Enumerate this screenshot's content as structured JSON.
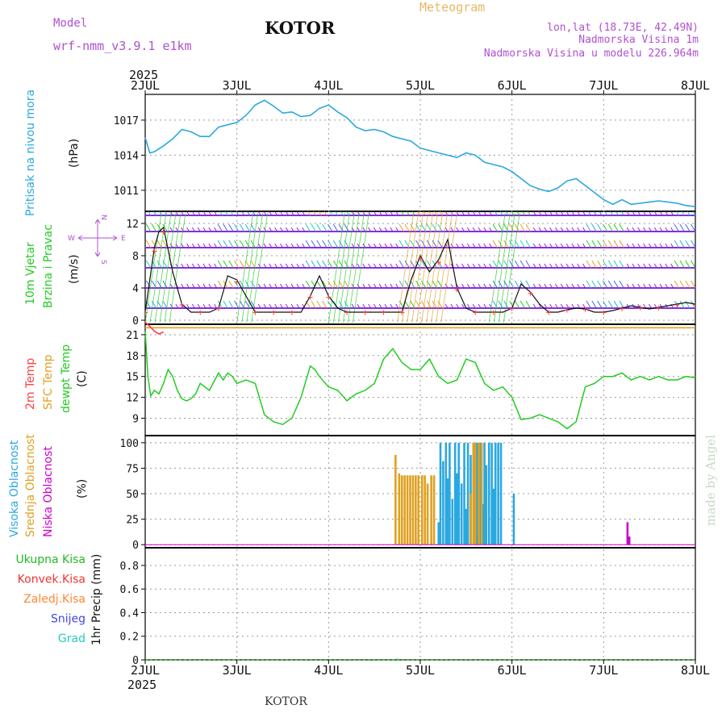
{
  "header": {
    "model_label": "Model",
    "model_name": "wrf-nmm_v3.9.1  e1km",
    "station_title": "KOTOR",
    "meteogram_label": "Meteogram",
    "lonlat": "lon,lat (18.73E, 42.49N)",
    "elevation": "Nadmorska Visina 1m",
    "model_elevation": "Nadmorska Visina u modelu 226.964m",
    "year": "2025"
  },
  "footer": {
    "year": "2025",
    "station": "KOTOR",
    "credit": "made by Angel"
  },
  "colors": {
    "pressure": "#2aa8e0",
    "temp2m": "#ff4040",
    "sfc": "#e0a020",
    "dewpt": "#22cc22",
    "high_cloud": "#2aa8e0",
    "mid_cloud": "#e0a020",
    "low_cloud": "#cc00cc",
    "wind_levels": "#8a2be2"
  },
  "x_ticks": [
    "2JUL",
    "3JUL",
    "4JUL",
    "5JUL",
    "6JUL",
    "7JUL",
    "8JUL"
  ],
  "panels": {
    "pressure": {
      "ylabel_name": "Pritisak na nivou mora",
      "unit": "(hPa)",
      "ticks": [
        "1011",
        "1014",
        "1017"
      ]
    },
    "wind": {
      "ylabel_a": "10m Vjetar",
      "ylabel_b": "Brzina i Pravac",
      "unit": "(m/s)",
      "ticks": [
        "0",
        "4",
        "8",
        "12"
      ],
      "compass_n": "N",
      "compass_w": "W",
      "compass_e": "E",
      "compass_s": "S"
    },
    "temp": {
      "label_2m": "2m Temp",
      "label_sfc": "SFC Temp",
      "label_dewpt": "dewpt Temp",
      "unit": "(C)",
      "ticks": [
        "9",
        "12",
        "15",
        "18",
        "21"
      ]
    },
    "cloud": {
      "label_high": "Visoka Oblacnost",
      "label_mid": "Srednja Oblacnost",
      "label_low": "Niska Oblacnost",
      "unit": "(%)",
      "ticks": [
        "0",
        "25",
        "50",
        "75",
        "100"
      ]
    },
    "precip": {
      "legend": [
        {
          "label": "Ukupna Kisa",
          "color": "#22bb22"
        },
        {
          "label": "Konvek.Kisa",
          "color": "#ee3333"
        },
        {
          "label": "Zaledj.Kisa",
          "color": "#ff8833"
        },
        {
          "label": "Snijeg",
          "color": "#4444ee"
        },
        {
          "label": "Grad",
          "color": "#22ccbb"
        }
      ],
      "ylabel": "1hr Precip (mm)",
      "ticks": [
        "0",
        "0.2",
        "0.4",
        "0.6",
        "0.8"
      ]
    }
  },
  "chart_data": [
    {
      "type": "line",
      "name": "Pritisak na nivou mora",
      "x_unit": "days since 2 JUL 2025 00UTC",
      "ylim": [
        1009.2,
        1019.2
      ],
      "series": [
        {
          "name": "Pritisak",
          "x": [
            0,
            0.05,
            0.1,
            0.2,
            0.3,
            0.4,
            0.5,
            0.6,
            0.7,
            0.8,
            0.9,
            1.0,
            1.1,
            1.2,
            1.3,
            1.4,
            1.5,
            1.6,
            1.7,
            1.8,
            1.9,
            2.0,
            2.1,
            2.2,
            2.3,
            2.4,
            2.5,
            2.6,
            2.7,
            2.8,
            2.9,
            3.0,
            3.1,
            3.2,
            3.3,
            3.4,
            3.5,
            3.6,
            3.7,
            3.8,
            3.9,
            4.0,
            4.1,
            4.2,
            4.3,
            4.4,
            4.5,
            4.6,
            4.7,
            4.8,
            4.9,
            5.0,
            5.1,
            5.2,
            5.3,
            5.4,
            5.5,
            5.6,
            5.7,
            5.8,
            5.9,
            6.0
          ],
          "values": [
            1015.5,
            1014.2,
            1014.3,
            1014.8,
            1015.4,
            1016.2,
            1016.0,
            1015.6,
            1015.6,
            1016.4,
            1016.6,
            1016.8,
            1017.4,
            1018.3,
            1018.7,
            1018.2,
            1017.6,
            1017.7,
            1017.3,
            1017.4,
            1018.0,
            1018.3,
            1017.7,
            1017.2,
            1016.4,
            1016.1,
            1016.2,
            1016.0,
            1015.6,
            1015.4,
            1015.2,
            1014.6,
            1014.4,
            1014.2,
            1014.0,
            1013.8,
            1014.2,
            1014.0,
            1013.4,
            1013.2,
            1013.0,
            1012.6,
            1012.0,
            1011.4,
            1011.1,
            1010.9,
            1011.2,
            1011.8,
            1012.0,
            1011.4,
            1010.8,
            1010.2,
            1009.8,
            1010.2,
            1009.8,
            1009.9,
            1010.0,
            1010.1,
            1010.0,
            1009.9,
            1009.7,
            1009.6
          ]
        }
      ]
    },
    {
      "type": "line",
      "name": "10m Vjetar Brzina i Pravac",
      "x_unit": "days since 2 JUL 2025 00UTC",
      "ylim": [
        -0.5,
        13.5
      ],
      "series": [
        {
          "name": "Brzina",
          "x": [
            0,
            0.05,
            0.1,
            0.15,
            0.2,
            0.3,
            0.4,
            0.5,
            0.6,
            0.7,
            0.8,
            0.9,
            1.0,
            1.1,
            1.2,
            1.3,
            1.4,
            1.5,
            1.6,
            1.7,
            1.8,
            1.9,
            2.0,
            2.1,
            2.2,
            2.3,
            2.4,
            2.5,
            2.6,
            2.7,
            2.8,
            2.9,
            3.0,
            3.1,
            3.2,
            3.3,
            3.4,
            3.5,
            3.6,
            3.7,
            3.8,
            3.9,
            4.0,
            4.1,
            4.2,
            4.3,
            4.4,
            4.5,
            4.6,
            4.7,
            4.8,
            4.9,
            5.0,
            5.1,
            5.2,
            5.3,
            5.4,
            5.5,
            5.6,
            5.7,
            5.8,
            5.9,
            6.0
          ],
          "values": [
            1,
            5,
            9,
            11,
            11.5,
            6,
            2,
            1,
            1,
            1,
            1.5,
            5.5,
            5,
            3,
            1,
            1,
            1,
            1,
            1,
            1,
            3,
            5.5,
            3,
            1.5,
            1,
            1,
            1,
            1,
            1,
            1,
            1,
            5,
            8,
            6,
            7.5,
            10,
            4,
            1.5,
            1,
            1,
            1,
            1,
            1.5,
            4.5,
            3.5,
            2,
            1,
            1,
            1.3,
            1.5,
            1.4,
            1,
            1,
            1.2,
            1.5,
            1.8,
            1.6,
            1.4,
            1.6,
            1.8,
            2,
            2.2,
            2
          ]
        }
      ]
    },
    {
      "type": "line",
      "name": "Temperatura",
      "x_unit": "days since 2 JUL 2025 00UTC",
      "ylim": [
        6.5,
        22.5
      ],
      "series": [
        {
          "name": "2m Temp",
          "x": [
            0,
            0.05,
            0.1,
            0.15,
            0.2
          ],
          "values": [
            22.8,
            22.2,
            21.5,
            21.1,
            21.4
          ]
        },
        {
          "name": "SFC Temp",
          "x": [
            0,
            1,
            2,
            3,
            4,
            5,
            6
          ],
          "values": [
            22,
            22,
            22,
            22,
            22,
            22,
            22
          ]
        },
        {
          "name": "dewpt Temp",
          "x": [
            0,
            0.03,
            0.06,
            0.1,
            0.15,
            0.2,
            0.25,
            0.3,
            0.35,
            0.4,
            0.45,
            0.5,
            0.55,
            0.6,
            0.7,
            0.8,
            0.85,
            0.9,
            0.95,
            1.0,
            1.1,
            1.2,
            1.3,
            1.4,
            1.5,
            1.6,
            1.7,
            1.8,
            1.85,
            1.9,
            2.0,
            2.1,
            2.2,
            2.3,
            2.4,
            2.5,
            2.6,
            2.7,
            2.8,
            2.9,
            3.0,
            3.1,
            3.2,
            3.3,
            3.4,
            3.5,
            3.6,
            3.7,
            3.8,
            3.9,
            4.0,
            4.1,
            4.2,
            4.3,
            4.4,
            4.5,
            4.6,
            4.7,
            4.8,
            4.9,
            5.0,
            5.1,
            5.2,
            5.3,
            5.4,
            5.5,
            5.6,
            5.7,
            5.8,
            5.9,
            6.0
          ],
          "values": [
            21.5,
            15,
            12.2,
            13,
            12.5,
            14,
            16,
            15,
            13,
            11.8,
            11.5,
            11.8,
            12.5,
            14,
            13,
            15.5,
            14.5,
            15.5,
            15,
            14,
            14.5,
            14,
            9.5,
            8.5,
            8.1,
            9,
            12,
            16.5,
            16,
            15,
            13.5,
            13,
            11.5,
            12.5,
            13,
            14,
            17.5,
            19,
            17,
            16,
            16,
            17.5,
            15,
            14,
            14.5,
            17.5,
            17,
            14,
            13,
            13.5,
            12,
            8.8,
            9,
            9.5,
            9,
            8.5,
            7.5,
            8.5,
            13.5,
            14,
            15,
            15,
            15.5,
            14.5,
            15,
            14.5,
            15,
            14.5,
            14.5,
            15,
            14.8
          ]
        }
      ]
    },
    {
      "type": "bar",
      "name": "Oblacnost",
      "x_unit": "days since 2 JUL 2025 00UTC",
      "ylim": [
        -3,
        107
      ],
      "series": [
        {
          "name": "Visoka Oblacnost",
          "x": [
            2.95,
            3.2,
            3.22,
            3.25,
            3.28,
            3.3,
            3.32,
            3.35,
            3.38,
            3.4,
            3.42,
            3.45,
            3.48,
            3.5,
            3.52,
            3.55,
            3.58,
            3.6,
            3.62,
            3.65,
            3.68,
            3.7,
            3.72,
            3.75,
            3.78,
            3.8,
            3.82,
            3.85,
            3.88,
            4.02
          ],
          "values": [
            6,
            22,
            100,
            82,
            100,
            65,
            100,
            45,
            100,
            70,
            100,
            60,
            100,
            35,
            100,
            88,
            100,
            55,
            100,
            100,
            40,
            100,
            78,
            100,
            100,
            55,
            100,
            100,
            100,
            50
          ]
        },
        {
          "name": "Srednja Oblacnost",
          "x": [
            2.73,
            2.77,
            2.8,
            2.83,
            2.86,
            2.89,
            2.92,
            2.95,
            2.98,
            3.02,
            3.05,
            3.08,
            3.12,
            3.15,
            3.55,
            3.58,
            3.6,
            3.64,
            3.67
          ],
          "values": [
            88,
            70,
            68,
            68,
            68,
            68,
            68,
            68,
            68,
            68,
            68,
            60,
            68,
            68,
            50,
            100,
            100,
            100,
            100
          ]
        },
        {
          "name": "Niska Oblacnost",
          "x": [
            5.26,
            5.28
          ],
          "values": [
            22,
            8
          ]
        }
      ]
    },
    {
      "type": "bar",
      "name": "1hr Precip",
      "x_unit": "days since 2 JUL 2025 00UTC",
      "ylim": [
        0,
        0.95
      ],
      "series": [
        {
          "name": "Ukupna Kisa",
          "x": [
            2.75
          ],
          "values": [
            0.01
          ]
        }
      ]
    }
  ]
}
